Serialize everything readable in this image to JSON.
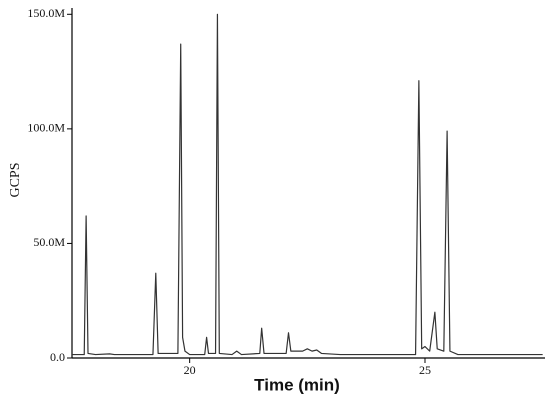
{
  "chart_data": {
    "type": "line",
    "x_label": "Time (min)",
    "y_label": "GCPS",
    "x": [
      17.5,
      17.76,
      17.8,
      17.84,
      18.0,
      18.3,
      18.4,
      19.22,
      19.28,
      19.33,
      19.75,
      19.81,
      19.85,
      19.9,
      20.0,
      20.32,
      20.36,
      20.4,
      20.55,
      20.59,
      20.63,
      20.9,
      21.0,
      21.1,
      21.49,
      21.53,
      21.58,
      22.05,
      22.1,
      22.15,
      22.4,
      22.5,
      22.6,
      22.7,
      22.8,
      23.2,
      24.8,
      24.87,
      24.93,
      25.0,
      25.1,
      25.21,
      25.26,
      25.4,
      25.47,
      25.53,
      25.7,
      27.5
    ],
    "series": [
      {
        "color": "#333333",
        "values": [
          1500000,
          1500000,
          62000000,
          2000000,
          1500000,
          1800000,
          1500000,
          1500000,
          37000000,
          2000000,
          2000000,
          137000000,
          9000000,
          3000000,
          1500000,
          1500000,
          9000000,
          2000000,
          2000000,
          150000000,
          2000000,
          1500000,
          3000000,
          1500000,
          2000000,
          13000000,
          2000000,
          2000000,
          11000000,
          3000000,
          3000000,
          4000000,
          3000000,
          3500000,
          2000000,
          1500000,
          1500000,
          121000000,
          4000000,
          5000000,
          3000000,
          20000000,
          4000000,
          3000000,
          99000000,
          3000000,
          1500000,
          1500000
        ]
      }
    ],
    "xlim": [
      17.5,
      27.55
    ],
    "xticks": [
      20,
      25
    ],
    "ylim": [
      0,
      151000000
    ],
    "yticks": [
      {
        "value": 0,
        "label": "0.0"
      },
      {
        "value": 50000000,
        "label": "50.0M"
      },
      {
        "value": 100000000,
        "label": "100.0M"
      },
      {
        "value": 150000000,
        "label": "150.0M"
      }
    ]
  }
}
